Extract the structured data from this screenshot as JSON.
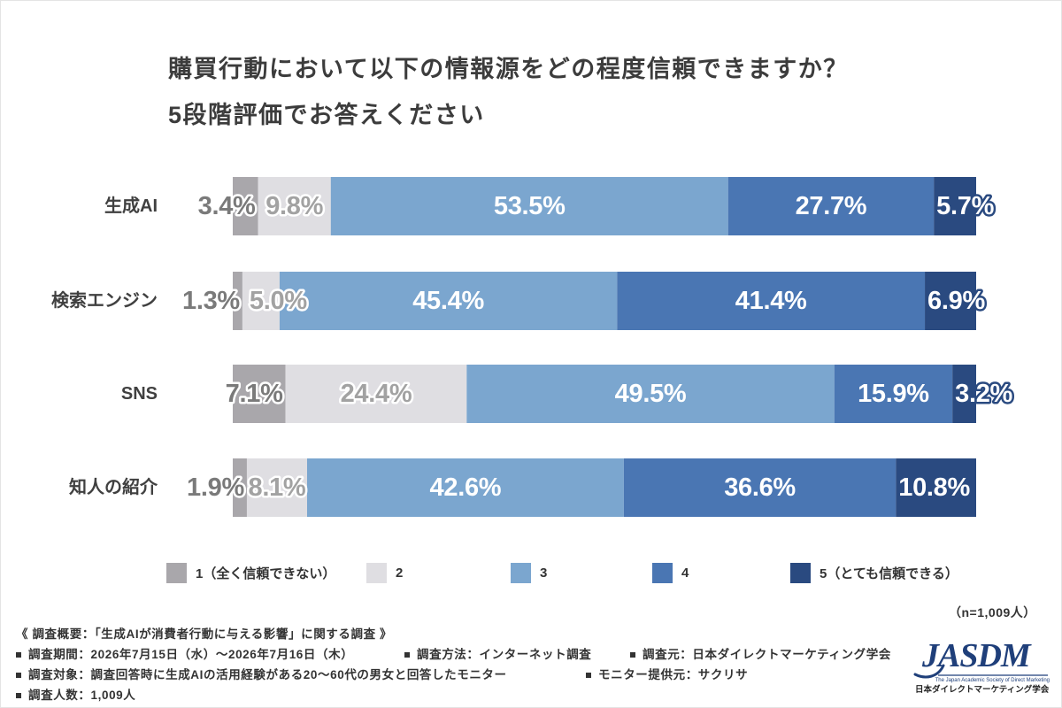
{
  "chart_data": {
    "type": "bar",
    "orientation": "horizontal",
    "stacked": true,
    "title": "購買行動において以下の情報源をどの程度信頼できますか？",
    "subtitle": "5段階評価でお答えください",
    "categories": [
      "生成AI",
      "検索エンジン",
      "SNS",
      "知人の紹介"
    ],
    "xlim": [
      0,
      100
    ],
    "grid": false,
    "legend_position": "bottom",
    "sample_note": "（n=1,009人）",
    "series": [
      {
        "name": "1（全く信頼できない）",
        "color": "#a9a7ab",
        "values": [
          3.4,
          1.3,
          7.1,
          1.9
        ],
        "labels": [
          "3.4%",
          "1.3%",
          "7.1%",
          "1.9%"
        ]
      },
      {
        "name": "2",
        "color": "#dfdee2",
        "values": [
          9.8,
          5.0,
          24.4,
          8.1
        ],
        "labels": [
          "9.8%",
          "5.0%",
          "24.4%",
          "8.1%"
        ]
      },
      {
        "name": "3",
        "color": "#7ba6cf",
        "values": [
          53.5,
          45.4,
          49.5,
          42.6
        ],
        "labels": [
          "53.5%",
          "45.4%",
          "49.5%",
          "42.6%"
        ]
      },
      {
        "name": "4",
        "color": "#4a76b3",
        "values": [
          27.7,
          41.4,
          15.9,
          36.6
        ],
        "labels": [
          "27.7%",
          "41.4%",
          "15.9%",
          "36.6%"
        ]
      },
      {
        "name": "5（とても信頼できる）",
        "color": "#2a4a80",
        "values": [
          5.7,
          6.9,
          3.2,
          10.8
        ],
        "labels": [
          "5.7%",
          "6.9%",
          "3.2%",
          "10.8%"
        ]
      }
    ]
  },
  "survey": {
    "heading": "《 調査概要：「生成AIが消費者行動に与える影響」に関する調査 》",
    "items": [
      "調査期間：2026年7月15日（水）～2026年7月16日（木）",
      "調査方法：インターネット調査",
      "調査元：日本ダイレクトマーケティング学会",
      "調査対象：調査回答時に生成AIの活用経験がある20～60代の男女と回答したモニター",
      "モニター提供元：サクリサ",
      "調査人数：1,009人"
    ]
  },
  "logo": {
    "mark": "JASDM",
    "tagline": "The Japan Academic Society of Direct Marketing",
    "name": "日本ダイレクトマーケティング学会",
    "color": "#1f3f7a"
  }
}
